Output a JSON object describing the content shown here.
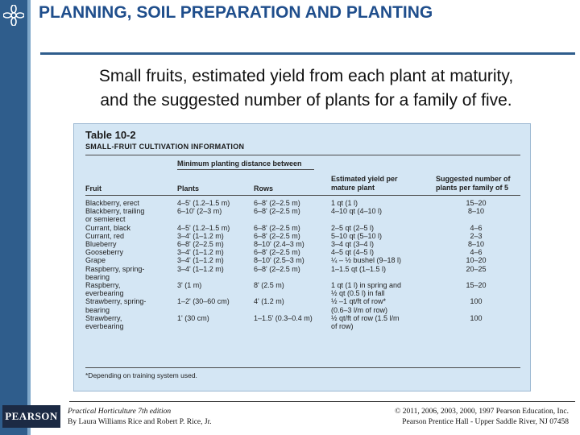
{
  "slide": {
    "title": "PLANNING, SOIL PREPARATION AND PLANTING",
    "subtitle_line1": "Small fruits, estimated yield from each plant at maturity,",
    "subtitle_line2": "and the suggested number of plants for a family of five."
  },
  "table": {
    "label": "Table 10-2",
    "caption": "Small-Fruit Cultivation Information",
    "group_header": "Minimum planting distance between",
    "columns": {
      "fruit": "Fruit",
      "plants": "Plants",
      "rows": "Rows",
      "yield_1": "Estimated yield per",
      "yield_2": "mature plant",
      "number_1": "Suggested number of",
      "number_2": "plants per family of 5"
    },
    "rows": [
      {
        "fruit": [
          "Blackberry, erect"
        ],
        "plants": [
          "4–5' (1.2–1.5 m)"
        ],
        "rows_dist": [
          "6–8' (2–2.5 m)"
        ],
        "yield": [
          "1 qt (1 l)"
        ],
        "number": [
          "15–20"
        ]
      },
      {
        "fruit": [
          "Blackberry, trailing",
          "  or semierect"
        ],
        "plants": [
          "6–10' (2–3 m)"
        ],
        "rows_dist": [
          "6–8' (2–2.5 m)"
        ],
        "yield": [
          "4–10 qt (4–10 l)"
        ],
        "number": [
          "8–10"
        ]
      },
      {
        "fruit": [
          "Currant, black"
        ],
        "plants": [
          "4–5' (1.2–1.5 m)"
        ],
        "rows_dist": [
          "6–8' (2–2.5 m)"
        ],
        "yield": [
          "2–5 qt (2–5 l)"
        ],
        "number": [
          "4–6"
        ]
      },
      {
        "fruit": [
          "Currant, red"
        ],
        "plants": [
          "3–4' (1–1.2 m)"
        ],
        "rows_dist": [
          "6–8' (2–2.5 m)"
        ],
        "yield": [
          "5–10 qt (5–10 l)"
        ],
        "number": [
          "2–3"
        ]
      },
      {
        "fruit": [
          "Blueberry"
        ],
        "plants": [
          "6–8' (2–2.5 m)"
        ],
        "rows_dist": [
          "8–10' (2.4–3 m)"
        ],
        "yield": [
          "3–4 qt (3–4 l)"
        ],
        "number": [
          "8–10"
        ]
      },
      {
        "fruit": [
          "Gooseberry"
        ],
        "plants": [
          "3–4' (1–1.2 m)"
        ],
        "rows_dist": [
          "6–8' (2–2.5 m)"
        ],
        "yield": [
          "4–5 qt (4–5 l)"
        ],
        "number": [
          "4–6"
        ]
      },
      {
        "fruit": [
          "Grape"
        ],
        "plants": [
          "3–4' (1–1.2 m)"
        ],
        "rows_dist": [
          "8–10' (2.5–3 m)"
        ],
        "yield": [
          "¼ – ½ bushel (9–18 l)"
        ],
        "number": [
          "10–20"
        ]
      },
      {
        "fruit": [
          "Raspberry, spring-",
          "  bearing"
        ],
        "plants": [
          "3–4' (1–1.2 m)"
        ],
        "rows_dist": [
          "6–8' (2–2.5 m)"
        ],
        "yield": [
          "1–1.5 qt (1–1.5 l)"
        ],
        "number": [
          "20–25"
        ]
      },
      {
        "fruit": [
          "Raspberry,",
          "  everbearing"
        ],
        "plants": [
          "3' (1 m)"
        ],
        "rows_dist": [
          "8' (2.5 m)"
        ],
        "yield": [
          "1 qt (1 l) in spring and",
          "  ½ qt (0.5 l) in fall"
        ],
        "number": [
          "15–20"
        ]
      },
      {
        "fruit": [
          "Strawberry, spring-",
          "  bearing"
        ],
        "plants": [
          "1–2' (30–60 cm)"
        ],
        "rows_dist": [
          "4' (1.2 m)"
        ],
        "yield": [
          "½ –1 qt/ft of row*",
          "  (0.6–3 l/m of row)"
        ],
        "number": [
          "100"
        ]
      },
      {
        "fruit": [
          "Strawberry,",
          "  everbearing"
        ],
        "plants": [
          "1' (30 cm)"
        ],
        "rows_dist": [
          "1–1.5' (0.3–0.4 m)"
        ],
        "yield": [
          "½ qt/ft of row (1.5 l/m",
          "  of row)"
        ],
        "number": [
          "100"
        ]
      }
    ],
    "footnote": "*Depending on training system used."
  },
  "footer": {
    "publisher_logo": "PEARSON",
    "book_title": "Practical Horticulture 7th edition",
    "authors": "By Laura Williams Rice and Robert P. Rice, Jr.",
    "copyright": "© 2011, 2006, 2003, 2000, 1997 Pearson Education, Inc.",
    "imprint": "Pearson Prentice Hall - Upper Saddle River, NJ 07458"
  }
}
